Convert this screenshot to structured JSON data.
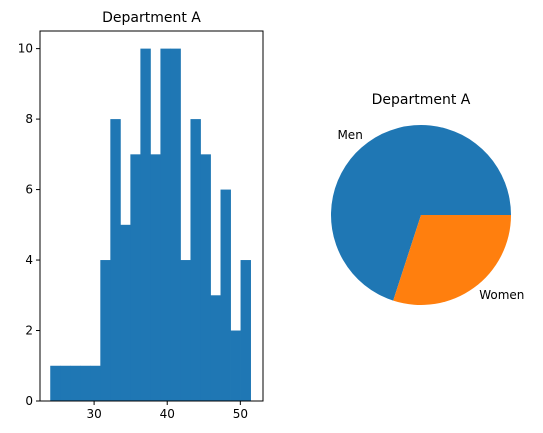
{
  "chart_data": [
    {
      "type": "bar",
      "title": "Department A",
      "xlabel": "",
      "ylabel": "",
      "xlim": [
        22.6,
        53.1
      ],
      "ylim": [
        0,
        10.5
      ],
      "xticks": [
        30,
        40,
        50
      ],
      "yticks": [
        0,
        2,
        4,
        6,
        8,
        10
      ],
      "bin_edges": [
        24.0,
        25.37,
        26.74,
        28.11,
        29.48,
        30.85,
        32.22,
        33.59,
        34.96,
        36.33,
        37.7,
        39.07,
        40.44,
        41.81,
        43.18,
        44.55,
        45.92,
        47.29,
        48.66,
        50.03,
        51.4
      ],
      "counts": [
        1,
        1,
        1,
        1,
        1,
        4,
        8,
        5,
        7,
        10,
        7,
        10,
        10,
        4,
        8,
        7,
        3,
        6,
        2,
        4
      ],
      "color": "#1f77b4"
    },
    {
      "type": "pie",
      "title": "Department A",
      "labels": [
        "Men",
        "Women"
      ],
      "values": [
        70,
        30
      ],
      "colors": [
        "#1f77b4",
        "#ff7f0e"
      ]
    }
  ]
}
